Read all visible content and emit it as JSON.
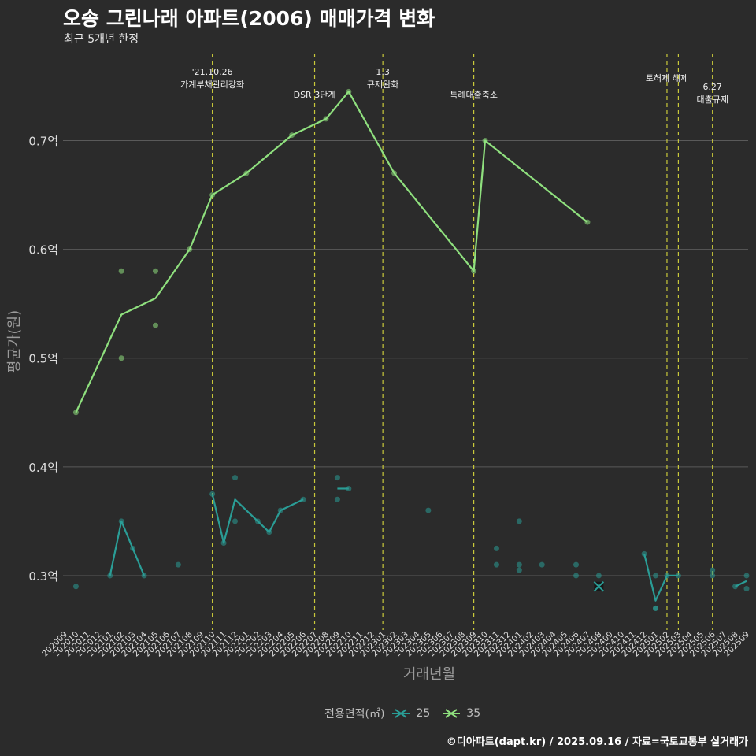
{
  "title": "오송 그린나래 아파트(2006) 매매가격 변화",
  "subtitle": "최근 5개년 한정",
  "caption": "©디아파트(dapt.kr) / 2025.09.16 / 자료=국토교통부 실거래가",
  "legend": {
    "title": "전용면적(㎡)",
    "items": [
      "25",
      "35"
    ]
  },
  "colors": {
    "s25": "#2a9d96",
    "s35": "#8fe07e",
    "vline": "#c9c93a",
    "grid": "#5a5a5a",
    "text": "#dddddd"
  },
  "chart_data": {
    "type": "line",
    "xlabel": "거래년월",
    "ylabel": "평균가(원)",
    "ylim": [
      0.25,
      0.78
    ],
    "y_ticks": [
      0.3,
      0.4,
      0.5,
      0.6,
      0.7
    ],
    "y_tick_labels": [
      "0.3억",
      "0.4억",
      "0.5억",
      "0.6억",
      "0.7억"
    ],
    "categories": [
      "202009",
      "202010",
      "202011",
      "202012",
      "202101",
      "202102",
      "202103",
      "202104",
      "202105",
      "202106",
      "202107",
      "202108",
      "202109",
      "202110",
      "202111",
      "202112",
      "202201",
      "202202",
      "202203",
      "202204",
      "202205",
      "202206",
      "202207",
      "202208",
      "202209",
      "202210",
      "202211",
      "202212",
      "202301",
      "202302",
      "202303",
      "202304",
      "202305",
      "202306",
      "202307",
      "202308",
      "202309",
      "202310",
      "202311",
      "202312",
      "202401",
      "202402",
      "202403",
      "202404",
      "202405",
      "202406",
      "202407",
      "202408",
      "202409",
      "202410",
      "202411",
      "202412",
      "202501",
      "202502",
      "202503",
      "202504",
      "202505",
      "202506",
      "202507",
      "202508",
      "202509"
    ],
    "series": [
      {
        "name": "35",
        "line": [
          [
            "202010",
            0.45
          ],
          [
            "202102",
            0.54
          ],
          [
            "202105",
            0.555
          ],
          [
            "202108",
            0.6
          ],
          [
            "202110",
            0.65
          ],
          [
            "202201",
            0.67
          ],
          [
            "202205",
            0.705
          ],
          [
            "202208",
            0.72
          ],
          [
            "202210",
            0.745
          ],
          [
            "202302",
            0.67
          ],
          [
            "202309",
            0.58
          ],
          [
            "202310",
            0.7
          ],
          [
            "202407",
            0.625
          ]
        ],
        "points": [
          [
            "202010",
            0.45
          ],
          [
            "202102",
            0.58
          ],
          [
            "202102",
            0.5
          ],
          [
            "202105",
            0.58
          ],
          [
            "202105",
            0.53
          ],
          [
            "202108",
            0.6
          ],
          [
            "202110",
            0.65
          ],
          [
            "202201",
            0.67
          ],
          [
            "202205",
            0.705
          ],
          [
            "202208",
            0.72
          ],
          [
            "202210",
            0.745
          ],
          [
            "202302",
            0.67
          ],
          [
            "202309",
            0.58
          ],
          [
            "202310",
            0.7
          ],
          [
            "202407",
            0.625
          ]
        ]
      },
      {
        "name": "25",
        "line": [
          [
            "202101",
            0.3
          ],
          [
            "202102",
            0.35
          ],
          [
            "202103",
            0.325
          ],
          [
            "202104",
            0.3
          ],
          [
            null,
            null
          ],
          [
            "202110",
            0.375
          ],
          [
            "202111",
            0.33
          ],
          [
            "202112",
            0.37
          ],
          [
            "202202",
            0.35
          ],
          [
            "202203",
            0.34
          ],
          [
            "202204",
            0.36
          ],
          [
            "202206",
            0.37
          ],
          [
            null,
            null
          ],
          [
            "202209",
            0.38
          ],
          [
            "202210",
            0.38
          ],
          [
            null,
            null
          ],
          [
            "202412",
            0.32
          ],
          [
            "202501",
            0.277
          ],
          [
            "202502",
            0.3
          ],
          [
            "202503",
            0.3
          ],
          [
            null,
            null
          ],
          [
            "202508",
            0.29
          ],
          [
            "202509",
            0.295
          ]
        ],
        "points": [
          [
            "202010",
            0.29
          ],
          [
            "202101",
            0.3
          ],
          [
            "202102",
            0.35
          ],
          [
            "202103",
            0.325
          ],
          [
            "202104",
            0.3
          ],
          [
            "202107",
            0.31
          ],
          [
            "202110",
            0.375
          ],
          [
            "202111",
            0.33
          ],
          [
            "202112",
            0.39
          ],
          [
            "202112",
            0.35
          ],
          [
            "202202",
            0.35
          ],
          [
            "202203",
            0.34
          ],
          [
            "202204",
            0.36
          ],
          [
            "202206",
            0.37
          ],
          [
            "202209",
            0.39
          ],
          [
            "202209",
            0.37
          ],
          [
            "202210",
            0.38
          ],
          [
            "202305",
            0.36
          ],
          [
            "202311",
            0.325
          ],
          [
            "202311",
            0.31
          ],
          [
            "202401",
            0.35
          ],
          [
            "202401",
            0.31
          ],
          [
            "202401",
            0.305
          ],
          [
            "202403",
            0.31
          ],
          [
            "202406",
            0.31
          ],
          [
            "202406",
            0.3
          ],
          [
            "202408",
            0.3
          ],
          [
            "202412",
            0.32
          ],
          [
            "202501",
            0.3
          ],
          [
            "202501",
            0.27
          ],
          [
            "202501",
            0.27
          ],
          [
            "202502",
            0.3
          ],
          [
            "202503",
            0.3
          ],
          [
            "202506",
            0.305
          ],
          [
            "202506",
            0.3
          ],
          [
            "202508",
            0.29
          ],
          [
            "202509",
            0.3
          ],
          [
            "202509",
            0.288
          ]
        ],
        "cross_markers": [
          [
            "202408",
            0.29
          ]
        ]
      }
    ],
    "annotations": [
      {
        "x": "202110",
        "lines": [
          "'21.10.26",
          "가계부채관리강화"
        ]
      },
      {
        "x": "202207",
        "lines": [
          "DSR 3단계"
        ]
      },
      {
        "x": "202301",
        "lines": [
          "1.3",
          "규제완화"
        ]
      },
      {
        "x": "202309",
        "lines": [
          "특례대출축소"
        ]
      },
      {
        "x": "202502",
        "lines": [
          "토허제 해제"
        ]
      },
      {
        "x": "202503",
        "lines": []
      },
      {
        "x": "202506",
        "lines": [
          "6.27",
          "대출규제"
        ]
      }
    ]
  }
}
